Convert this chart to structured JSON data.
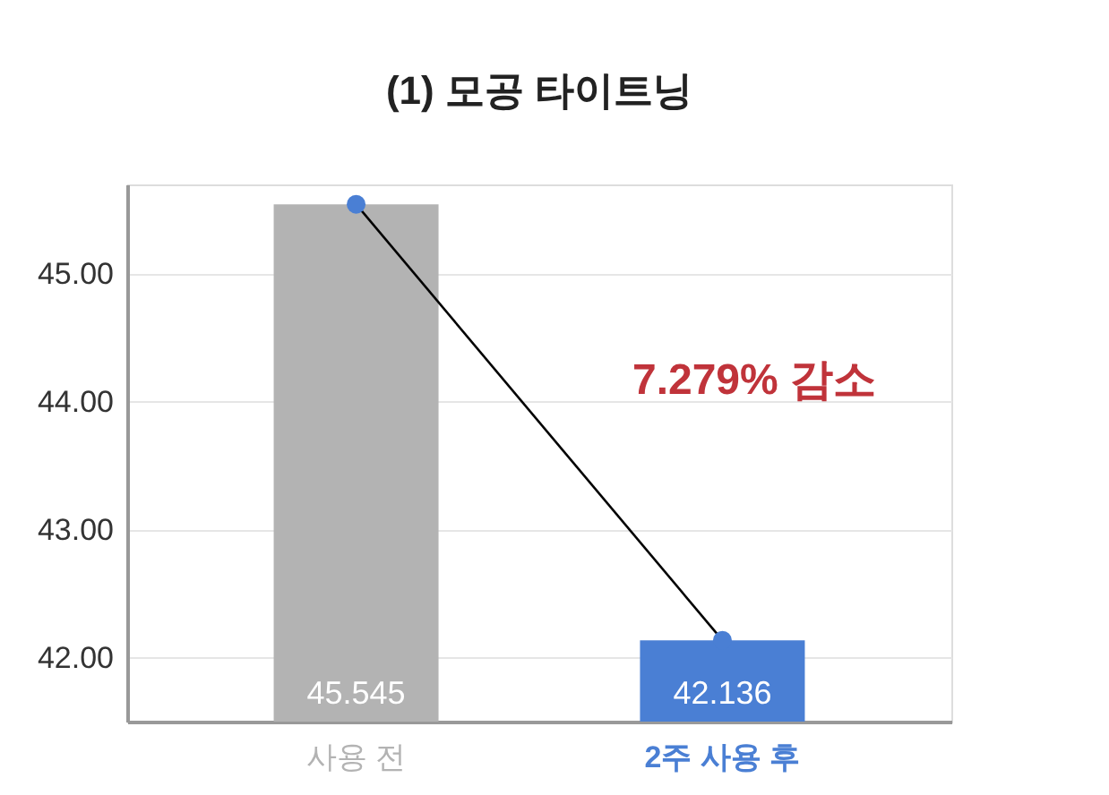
{
  "chart_data": {
    "type": "bar",
    "title": "(1) 모공 타이트닝",
    "categories": [
      "사용 전",
      "2주 사용 후"
    ],
    "values": [
      45.545,
      42.136
    ],
    "colors": [
      "#b3b3b3",
      "#4a7fd4"
    ],
    "series": [
      {
        "type": "line",
        "color": "#000000",
        "values": [
          45.545,
          42.136
        ]
      }
    ],
    "marker": "circle",
    "value_labels": [
      "45.545",
      "42.136"
    ],
    "ylim": [
      41.5,
      45.7
    ],
    "yticks": [
      {
        "value": 42,
        "label": "42.00"
      },
      {
        "value": 43,
        "label": "43.00"
      },
      {
        "value": 44,
        "label": "44.00"
      },
      {
        "value": 45,
        "label": "45.00"
      }
    ],
    "grid": "y",
    "annotations": [
      "7.279% 감소"
    ]
  }
}
